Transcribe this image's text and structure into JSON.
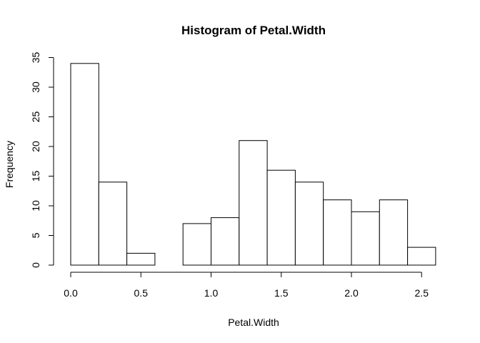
{
  "chart_data": {
    "type": "bar",
    "title": "Histogram of Petal.Width",
    "xlabel": "Petal.Width",
    "ylabel": "Frequency",
    "bins": [
      {
        "start": 0.0,
        "end": 0.2,
        "count": 34
      },
      {
        "start": 0.2,
        "end": 0.4,
        "count": 14
      },
      {
        "start": 0.4,
        "end": 0.6,
        "count": 2
      },
      {
        "start": 0.6,
        "end": 0.8,
        "count": 0
      },
      {
        "start": 0.8,
        "end": 1.0,
        "count": 7
      },
      {
        "start": 1.0,
        "end": 1.2,
        "count": 8
      },
      {
        "start": 1.2,
        "end": 1.4,
        "count": 21
      },
      {
        "start": 1.4,
        "end": 1.6,
        "count": 16
      },
      {
        "start": 1.6,
        "end": 1.8,
        "count": 14
      },
      {
        "start": 1.8,
        "end": 2.0,
        "count": 11
      },
      {
        "start": 2.0,
        "end": 2.2,
        "count": 9
      },
      {
        "start": 2.2,
        "end": 2.4,
        "count": 11
      },
      {
        "start": 2.4,
        "end": 2.6,
        "count": 3
      }
    ],
    "xlim": [
      0.0,
      2.6
    ],
    "ylim": [
      0,
      35
    ],
    "x_ticks": [
      "0.0",
      "0.5",
      "1.0",
      "1.5",
      "2.0",
      "2.5"
    ],
    "y_ticks": [
      "0",
      "5",
      "10",
      "15",
      "20",
      "25",
      "30",
      "35"
    ],
    "grid": false,
    "legend": "none"
  }
}
